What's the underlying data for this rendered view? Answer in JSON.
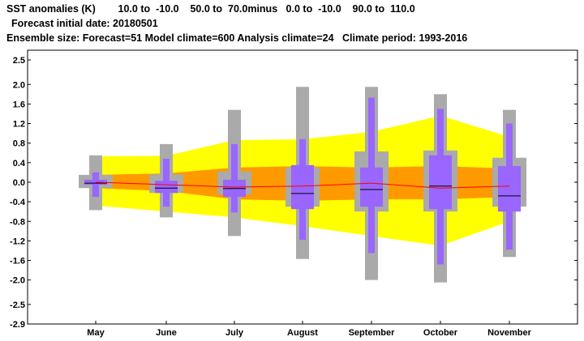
{
  "header": {
    "line1": "SST anomalies (K)        10.0 to  -10.0    50.0 to  70.0minus   0.0 to  -10.0    90.0 to  110.0",
    "line2": "Forecast initial date: 20180501",
    "line3": "Ensemble size: Forecast=51 Model climate=600 Analysis climate=24   Climate period: 1993-2016"
  },
  "colors": {
    "yellow": "#ffff00",
    "orange": "#ff9900",
    "gray": "#aaaaaa",
    "purple": "#9966ff",
    "red_line": "#ff0000",
    "median": "#000000"
  },
  "chart_data": {
    "type": "box",
    "title": "SST anomalies (K)",
    "categories": [
      "May",
      "June",
      "July",
      "August",
      "September",
      "October",
      "November"
    ],
    "ylim": [
      -2.9,
      2.7
    ],
    "yticks": [
      2.5,
      2.0,
      1.6,
      1.2,
      0.8,
      0.4,
      0.0,
      -0.4,
      -0.8,
      -1.2,
      -1.6,
      -2.0,
      -2.5,
      -2.9
    ],
    "ytick_labels": [
      "2.5",
      "2.0",
      "1.6",
      "1.2",
      "0.8",
      "0.4",
      "0.0",
      "-0.4",
      "-0.8",
      "-1.2",
      "-1.6",
      "-2.0",
      "-2.5",
      "-2.9"
    ],
    "model_climate": {
      "min": [
        -0.57,
        -0.72,
        -1.1,
        -1.57,
        -2.0,
        -2.05,
        -1.53
      ],
      "q1": [
        -0.12,
        -0.22,
        -0.25,
        -0.5,
        -0.6,
        -0.6,
        -0.5
      ],
      "median": [
        -0.02,
        -0.12,
        -0.13,
        -0.23,
        -0.15,
        -0.08,
        -0.28
      ],
      "q3": [
        0.15,
        0.16,
        0.22,
        0.3,
        0.63,
        0.65,
        0.5
      ],
      "max": [
        0.55,
        0.78,
        1.48,
        1.95,
        1.95,
        1.8,
        1.48
      ]
    },
    "forecast": {
      "min": [
        -0.3,
        -0.5,
        -0.62,
        -1.18,
        -1.45,
        -1.68,
        -1.38
      ],
      "q1": [
        -0.05,
        -0.22,
        -0.3,
        -0.55,
        -0.5,
        -0.55,
        -0.6
      ],
      "median": [
        -0.02,
        -0.12,
        -0.13,
        -0.23,
        -0.15,
        -0.08,
        -0.28
      ],
      "q3": [
        0.05,
        0.03,
        0.05,
        0.35,
        0.3,
        0.55,
        0.33
      ],
      "max": [
        0.2,
        0.48,
        0.78,
        0.88,
        1.73,
        1.5,
        1.2
      ]
    },
    "analysis_climate": {
      "outer_low": [
        -0.48,
        -0.6,
        -0.72,
        -0.9,
        -1.1,
        -1.3,
        -0.8
      ],
      "outer_high": [
        0.53,
        0.54,
        0.86,
        0.88,
        1.03,
        1.36,
        0.93
      ],
      "inner_low": [
        -0.12,
        -0.18,
        -0.35,
        -0.38,
        -0.35,
        -0.35,
        -0.3
      ],
      "inner_high": [
        0.15,
        0.18,
        0.3,
        0.33,
        0.3,
        0.33,
        0.28
      ],
      "mean": [
        0.0,
        -0.05,
        -0.1,
        -0.08,
        -0.02,
        -0.12,
        -0.08
      ]
    }
  }
}
